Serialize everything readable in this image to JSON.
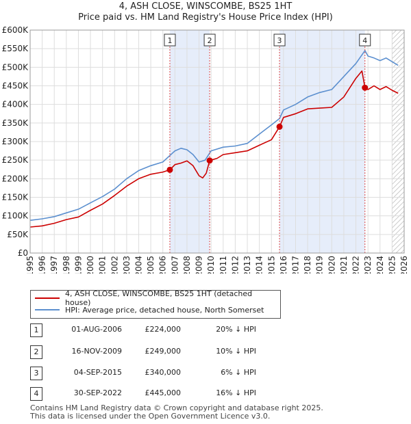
{
  "chart_data": {
    "type": "line",
    "title": "4, ASH CLOSE, WINSCOMBE, BS25 1HT",
    "subtitle": "Price paid vs. HM Land Registry's House Price Index (HPI)",
    "xlim": [
      1995,
      2026
    ],
    "ylim": [
      0,
      600000
    ],
    "x_ticks": [
      "1995",
      "1996",
      "1997",
      "1998",
      "1999",
      "2000",
      "2001",
      "2002",
      "2003",
      "2004",
      "2005",
      "2006",
      "2007",
      "2008",
      "2009",
      "2010",
      "2011",
      "2012",
      "2013",
      "2014",
      "2015",
      "2016",
      "2017",
      "2018",
      "2019",
      "2020",
      "2021",
      "2022",
      "2023",
      "2024",
      "2025",
      "2026"
    ],
    "y_ticks": [
      {
        "value": 0,
        "label": "£0"
      },
      {
        "value": 50000,
        "label": "£50K"
      },
      {
        "value": 100000,
        "label": "£100K"
      },
      {
        "value": 150000,
        "label": "£150K"
      },
      {
        "value": 200000,
        "label": "£200K"
      },
      {
        "value": 250000,
        "label": "£250K"
      },
      {
        "value": 300000,
        "label": "£300K"
      },
      {
        "value": 350000,
        "label": "£350K"
      },
      {
        "value": 400000,
        "label": "£400K"
      },
      {
        "value": 450000,
        "label": "£450K"
      },
      {
        "value": 500000,
        "label": "£500K"
      },
      {
        "value": 550000,
        "label": "£550K"
      },
      {
        "value": 600000,
        "label": "£600K"
      }
    ],
    "grid": true,
    "shaded_ranges": [
      [
        2006.58,
        2009.88
      ],
      [
        2015.67,
        2022.75
      ]
    ],
    "future_hatch_from": 2025.0,
    "series": [
      {
        "name": "4, ASH CLOSE, WINSCOMBE, BS25 1HT (detached house)",
        "color": "#cc0000",
        "points": [
          [
            1995.0,
            70000
          ],
          [
            1996.0,
            73000
          ],
          [
            1997.0,
            80000
          ],
          [
            1998.0,
            90000
          ],
          [
            1999.0,
            97000
          ],
          [
            2000.0,
            115000
          ],
          [
            2001.0,
            132000
          ],
          [
            2002.0,
            155000
          ],
          [
            2003.0,
            180000
          ],
          [
            2004.0,
            200000
          ],
          [
            2005.0,
            212000
          ],
          [
            2006.0,
            218000
          ],
          [
            2006.58,
            224000
          ],
          [
            2007.0,
            238000
          ],
          [
            2007.5,
            242000
          ],
          [
            2008.0,
            248000
          ],
          [
            2008.5,
            235000
          ],
          [
            2009.0,
            208000
          ],
          [
            2009.3,
            202000
          ],
          [
            2009.6,
            215000
          ],
          [
            2009.88,
            249000
          ],
          [
            2010.5,
            255000
          ],
          [
            2011.0,
            265000
          ],
          [
            2012.0,
            270000
          ],
          [
            2013.0,
            275000
          ],
          [
            2014.0,
            290000
          ],
          [
            2015.0,
            305000
          ],
          [
            2015.67,
            340000
          ],
          [
            2016.0,
            365000
          ],
          [
            2017.0,
            375000
          ],
          [
            2018.0,
            388000
          ],
          [
            2019.0,
            390000
          ],
          [
            2020.0,
            392000
          ],
          [
            2021.0,
            420000
          ],
          [
            2022.0,
            470000
          ],
          [
            2022.5,
            490000
          ],
          [
            2022.75,
            445000
          ],
          [
            2023.0,
            440000
          ],
          [
            2023.5,
            450000
          ],
          [
            2024.0,
            440000
          ],
          [
            2024.5,
            448000
          ],
          [
            2025.0,
            438000
          ],
          [
            2025.5,
            430000
          ]
        ]
      },
      {
        "name": "HPI: Average price, detached house, North Somerset",
        "color": "#5b8fcf",
        "points": [
          [
            1995.0,
            88000
          ],
          [
            1996.0,
            92000
          ],
          [
            1997.0,
            98000
          ],
          [
            1998.0,
            108000
          ],
          [
            1999.0,
            118000
          ],
          [
            2000.0,
            135000
          ],
          [
            2001.0,
            152000
          ],
          [
            2002.0,
            172000
          ],
          [
            2003.0,
            200000
          ],
          [
            2004.0,
            222000
          ],
          [
            2005.0,
            235000
          ],
          [
            2006.0,
            245000
          ],
          [
            2007.0,
            275000
          ],
          [
            2007.5,
            282000
          ],
          [
            2008.0,
            278000
          ],
          [
            2008.5,
            265000
          ],
          [
            2009.0,
            245000
          ],
          [
            2009.5,
            250000
          ],
          [
            2010.0,
            275000
          ],
          [
            2011.0,
            285000
          ],
          [
            2012.0,
            288000
          ],
          [
            2013.0,
            295000
          ],
          [
            2014.0,
            320000
          ],
          [
            2015.0,
            345000
          ],
          [
            2015.67,
            362000
          ],
          [
            2016.0,
            385000
          ],
          [
            2017.0,
            400000
          ],
          [
            2018.0,
            420000
          ],
          [
            2019.0,
            432000
          ],
          [
            2020.0,
            440000
          ],
          [
            2021.0,
            475000
          ],
          [
            2022.0,
            510000
          ],
          [
            2022.75,
            545000
          ],
          [
            2023.0,
            530000
          ],
          [
            2023.5,
            525000
          ],
          [
            2024.0,
            518000
          ],
          [
            2024.5,
            525000
          ],
          [
            2025.0,
            515000
          ],
          [
            2025.5,
            505000
          ]
        ]
      }
    ],
    "sale_markers": [
      {
        "label": "1",
        "date": 2006.58,
        "price": 224000
      },
      {
        "label": "2",
        "date": 2009.88,
        "price": 249000
      },
      {
        "label": "3",
        "date": 2015.67,
        "price": 340000
      },
      {
        "label": "4",
        "date": 2022.75,
        "price": 445000
      }
    ]
  },
  "legend": {
    "property_label": "4, ASH CLOSE, WINSCOMBE, BS25 1HT (detached house)",
    "hpi_label": "HPI: Average price, detached house, North Somerset"
  },
  "sales": [
    {
      "num": "1",
      "date": "01-AUG-2006",
      "price": "£224,000",
      "relation": "20% ↓ HPI"
    },
    {
      "num": "2",
      "date": "16-NOV-2009",
      "price": "£249,000",
      "relation": "10% ↓ HPI"
    },
    {
      "num": "3",
      "date": "04-SEP-2015",
      "price": "£340,000",
      "relation": "6% ↓ HPI"
    },
    {
      "num": "4",
      "date": "30-SEP-2022",
      "price": "£445,000",
      "relation": "16% ↓ HPI"
    }
  ],
  "footer": {
    "line1": "Contains HM Land Registry data © Crown copyright and database right 2025.",
    "line2": "This data is licensed under the Open Government Licence v3.0."
  }
}
